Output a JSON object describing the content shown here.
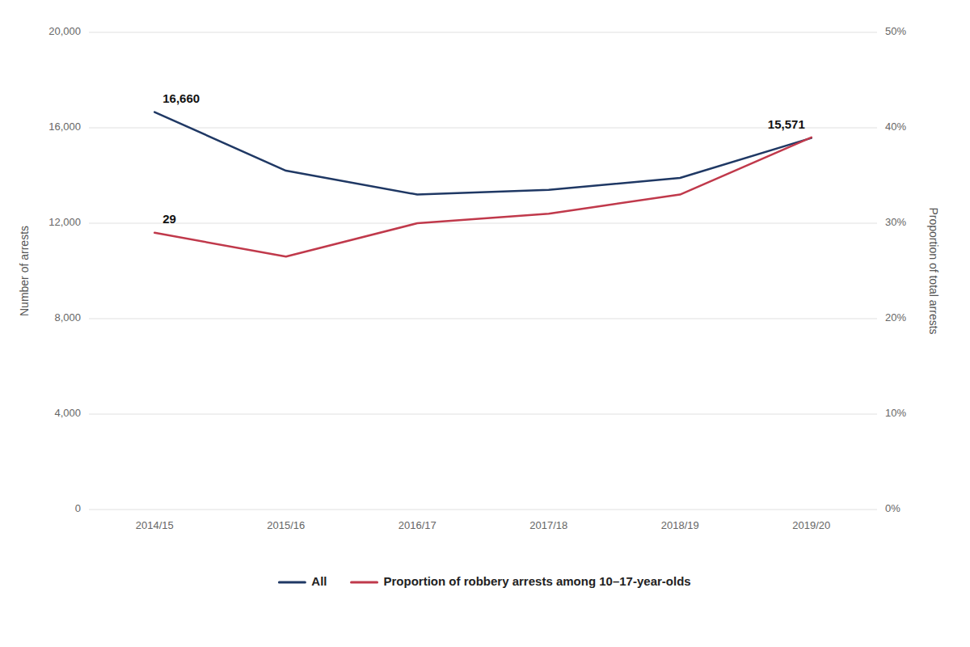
{
  "chart_data": {
    "type": "line",
    "categories": [
      "2014/15",
      "2015/16",
      "2016/17",
      "2017/18",
      "2018/19",
      "2019/20"
    ],
    "series": [
      {
        "name": "All",
        "color": "#1f3864",
        "values": [
          16660,
          14200,
          13200,
          13400,
          13900,
          15571
        ]
      },
      {
        "name": "Proportion of robbery arrests among 10–17-year-olds",
        "color": "#c0394b",
        "axis": "y2",
        "values": [
          0.29,
          0.265,
          0.3,
          0.31,
          0.33,
          0.39
        ]
      }
    ],
    "y_label": "Number of arrests",
    "y2_label": "Proportion of total arrests",
    "ylim": [
      0,
      20000
    ],
    "yticks": [
      0,
      {
        "value": 4000,
        "label": "4,000"
      },
      {
        "value": 8000,
        "label": "8,000"
      },
      {
        "value": 12000,
        "label": "12,000"
      },
      {
        "value": 16000,
        "label": "16,000"
      },
      {
        "value": 20000,
        "label": "20,000"
      }
    ],
    "y2lim": [
      0,
      0.5
    ],
    "y2ticks": [
      {
        "value": 0.0,
        "label": "0%"
      },
      {
        "value": 0.1,
        "label": "10%"
      },
      {
        "value": 0.2,
        "label": "20%"
      },
      {
        "value": 0.3,
        "label": "30%"
      },
      {
        "value": 0.4,
        "label": "40%"
      },
      {
        "value": 0.5,
        "label": "50%"
      }
    ],
    "annotations": [
      {
        "text": "16,660",
        "x": "2014/15",
        "y": 16660
      },
      {
        "text": "15,571",
        "x": "2019/20",
        "y": 15571
      },
      {
        "text": "29",
        "x": "2014/15",
        "y": 0.29,
        "axis": "y2"
      }
    ],
    "grid": true,
    "legend": "bottom"
  }
}
